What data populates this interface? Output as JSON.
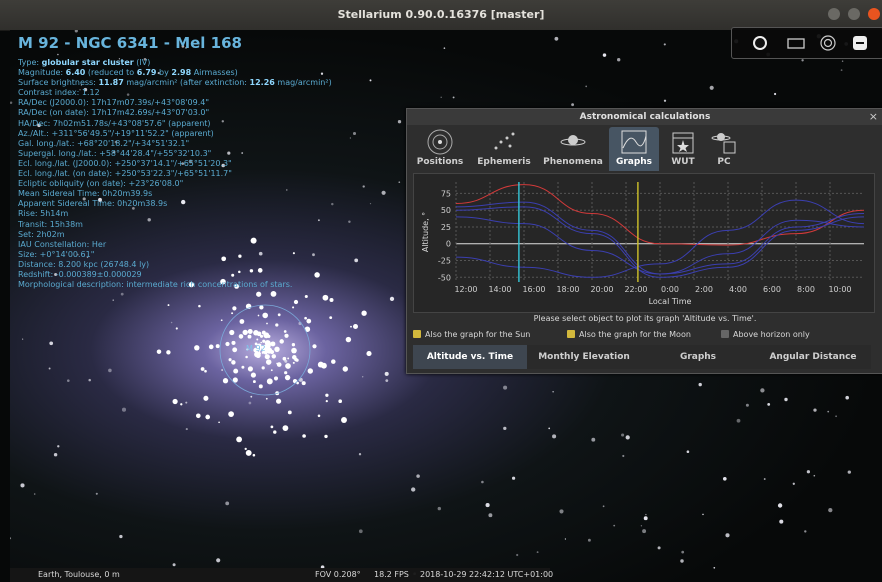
{
  "window": {
    "title": "Stellarium 0.90.0.16376 [master]"
  },
  "object": {
    "name": "M 92 - NGC 6341 - Mel 168",
    "marker": "M 92",
    "type_label": "Type:",
    "type_value": "globular star cluster",
    "type_suffix": "(IV)",
    "mag_label": "Magnitude:",
    "mag_value": "6.40",
    "mag_mid": "(reduced to",
    "mag_reduced": "6.79",
    "mag_by": "by",
    "mag_airmass": "2.98",
    "mag_end": "Airmasses)",
    "sb_label": "Surface brightness:",
    "sb_value": "11.87",
    "sb_mid": "mag/arcmin² (after extinction:",
    "sb_ext": "12.26",
    "sb_end": "mag/arcmin²)",
    "lines": [
      "Contrast index: 1.12",
      "RA/Dec (J2000.0): 17h17m07.39s/+43°08'09.4\"",
      "RA/Dec (on date): 17h17m42.69s/+43°07'03.0\"",
      "HA/Dec: 7h02m51.78s/+43°08'57.6\" (apparent)",
      "Az./Alt.: +311°56'49.5\"/+19°11'52.2\" (apparent)",
      "Gal. long./lat.: +68°20'18.2\"/+34°51'32.1\"",
      "Supergal. long./lat.: +58°44'28.4\"/+55°32'10.3\"",
      "Ecl. long./lat. (J2000.0): +250°37'14.1\"/+65°51'20.3\"",
      "Ecl. long./lat. (on date): +250°53'22.3\"/+65°51'11.7\"",
      "Ecliptic obliquity (on date): +23°26'08.0\"",
      "Mean Sidereal Time: 0h20m39.9s",
      "Apparent Sidereal Time: 0h20m38.9s",
      "Rise: 5h14m",
      "Transit: 15h38m",
      "Set: 2h02m",
      "IAU Constellation: Her",
      "Size: +0°14'00.61\"",
      "Distance: 8.200 kpc (26748.4 ly)",
      "Redshift: -0.000389±0.000029",
      "Morphological description: intermediate rich concentrations of stars."
    ]
  },
  "toolbar": {
    "icons": [
      "moon-icon",
      "rectangle-icon",
      "target-icon",
      "exit-icon"
    ]
  },
  "dialog": {
    "title": "Astronomical calculations",
    "close": "×",
    "tabs": [
      "Positions",
      "Ephemeris",
      "Phenomena",
      "Graphs",
      "WUT",
      "PC"
    ],
    "active_tab": "Graphs",
    "message": "Please select object to plot its graph 'Altitude vs. Time'.",
    "options": [
      {
        "label": "Also the graph for the Sun",
        "checked": true
      },
      {
        "label": "Also the graph for the Moon",
        "checked": true
      },
      {
        "label": "Above horizon only",
        "checked": false
      }
    ],
    "bottom_tabs": [
      "Altitude vs. Time",
      "Monthly Elevation",
      "Graphs",
      "Angular Distance"
    ],
    "active_bottom_tab": "Altitude vs. Time",
    "colors": {
      "sun": "#d23a3a",
      "moon": "#3b3fb0",
      "object": "#3b3fb0",
      "now_line": "#cfc22a",
      "transit_line": "#35c7d8"
    }
  },
  "chart_data": {
    "type": "line",
    "xlabel": "Local Time",
    "ylabel": "Altitude, °",
    "x_ticks": [
      "12:00",
      "14:00",
      "16:00",
      "18:00",
      "20:00",
      "22:00",
      "0:00",
      "2:00",
      "4:00",
      "6:00",
      "8:00",
      "10:00"
    ],
    "y_ticks": [
      75,
      50,
      25,
      0,
      -25,
      -50
    ],
    "xlim": [
      0,
      24
    ],
    "ylim": [
      -57,
      92
    ],
    "grid": true,
    "series": [
      {
        "color": "#d23a3a",
        "x": [
          0,
          4,
          8,
          12,
          16,
          20,
          24
        ],
        "y": [
          60,
          88,
          45,
          0,
          -2,
          15,
          50
        ]
      },
      {
        "color": "#3b3fb0",
        "x": [
          0,
          4,
          8,
          12,
          16,
          20,
          24
        ],
        "y": [
          55,
          62,
          20,
          -45,
          -30,
          25,
          45
        ]
      },
      {
        "color": "#3b3fb0",
        "x": [
          0,
          4,
          8,
          12,
          16,
          20,
          24
        ],
        "y": [
          50,
          55,
          15,
          -50,
          -35,
          20,
          40
        ]
      },
      {
        "color": "#3b3fb0",
        "x": [
          0,
          4,
          8,
          12,
          16,
          20,
          24
        ],
        "y": [
          40,
          30,
          -10,
          -45,
          -15,
          35,
          25
        ]
      },
      {
        "color": "#3b3fb0",
        "x": [
          0,
          4,
          8,
          12,
          16,
          20,
          24
        ],
        "y": [
          -20,
          -35,
          -50,
          -30,
          20,
          65,
          30
        ]
      }
    ],
    "vlines": [
      {
        "x": 3.7,
        "color": "#35c7d8"
      },
      {
        "x": 10.7,
        "color": "#cfc22a"
      }
    ]
  },
  "status": {
    "location": "Earth, Toulouse, 0 m",
    "fov": "FOV 0.208°",
    "fps": "18.2 FPS",
    "datetime": "2018-10-29 22:42:12 UTC+01:00"
  }
}
